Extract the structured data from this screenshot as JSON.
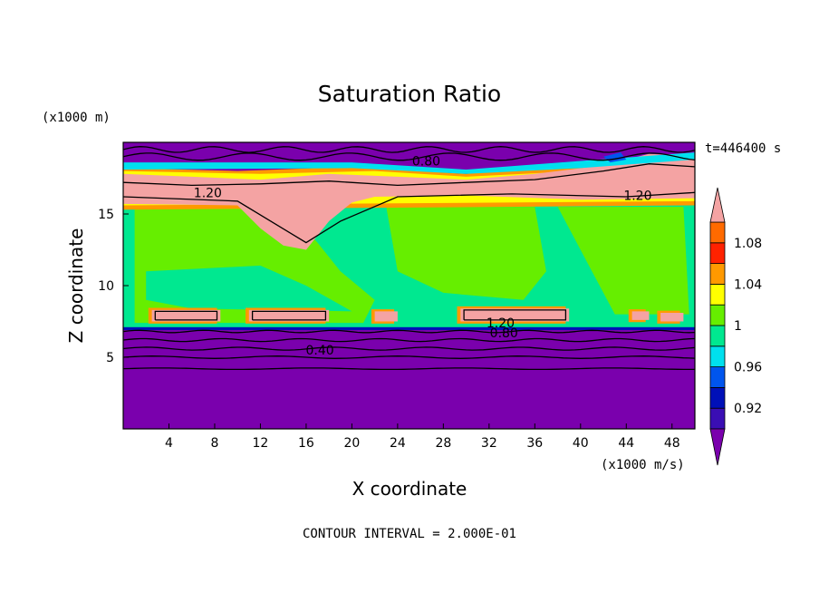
{
  "chart_data": {
    "type": "contour",
    "title": "Saturation Ratio",
    "xlabel": "X coordinate",
    "ylabel": "Z coordinate",
    "x_unit": "(x1000 m/s)",
    "y_unit": "(x1000 m)",
    "time_label": "t=446400 s",
    "footer": "CONTOUR INTERVAL = 2.000E-01",
    "xlim": [
      0,
      50
    ],
    "ylim": [
      0,
      20
    ],
    "x_ticks": [
      4,
      8,
      12,
      16,
      20,
      24,
      28,
      32,
      36,
      40,
      44,
      48
    ],
    "x_tick_labels": [
      "4",
      "8",
      "12",
      "16",
      "20",
      "24",
      "28",
      "32",
      "36",
      "40",
      "44",
      "48"
    ],
    "y_ticks": [
      5,
      10,
      15
    ],
    "y_tick_labels": [
      "5",
      "10",
      "15"
    ],
    "contour_labels": [
      {
        "text": "0.80",
        "x": 26.5,
        "z": 18.7
      },
      {
        "text": "1.20",
        "x": 7.4,
        "z": 16.5
      },
      {
        "text": "1.20",
        "x": 45.0,
        "z": 16.3
      },
      {
        "text": "1.20",
        "x": 33.0,
        "z": 7.4
      },
      {
        "text": "0.80",
        "x": 33.3,
        "z": 6.7
      },
      {
        "text": "0.40",
        "x": 17.2,
        "z": 5.5
      }
    ],
    "colorbar": {
      "boundaries": [
        0.9,
        0.92,
        0.94,
        0.96,
        0.98,
        1.0,
        1.02,
        1.04,
        1.06,
        1.08,
        1.1
      ],
      "labels": [
        "0.92",
        "0.96",
        "1",
        "1.04",
        "1.08"
      ],
      "label_values": [
        0.92,
        0.96,
        1.0,
        1.04,
        1.08
      ],
      "colors": [
        "#7a00ad",
        "#3a0eb4",
        "#0010b8",
        "#0055ee",
        "#00e0ee",
        "#00e890",
        "#66ee00",
        "#ffff00",
        "#ff9900",
        "#ff2200",
        "#ff6a00",
        "#f4a3a3"
      ],
      "under_color": "#7a00ad",
      "over_color": "#f4a3a3"
    },
    "regions": {
      "subsaturated": "#7a00ad",
      "near_one": "#00e890",
      "slightly_super": "#66ee00",
      "supersaturated": "#f4a3a3"
    }
  }
}
